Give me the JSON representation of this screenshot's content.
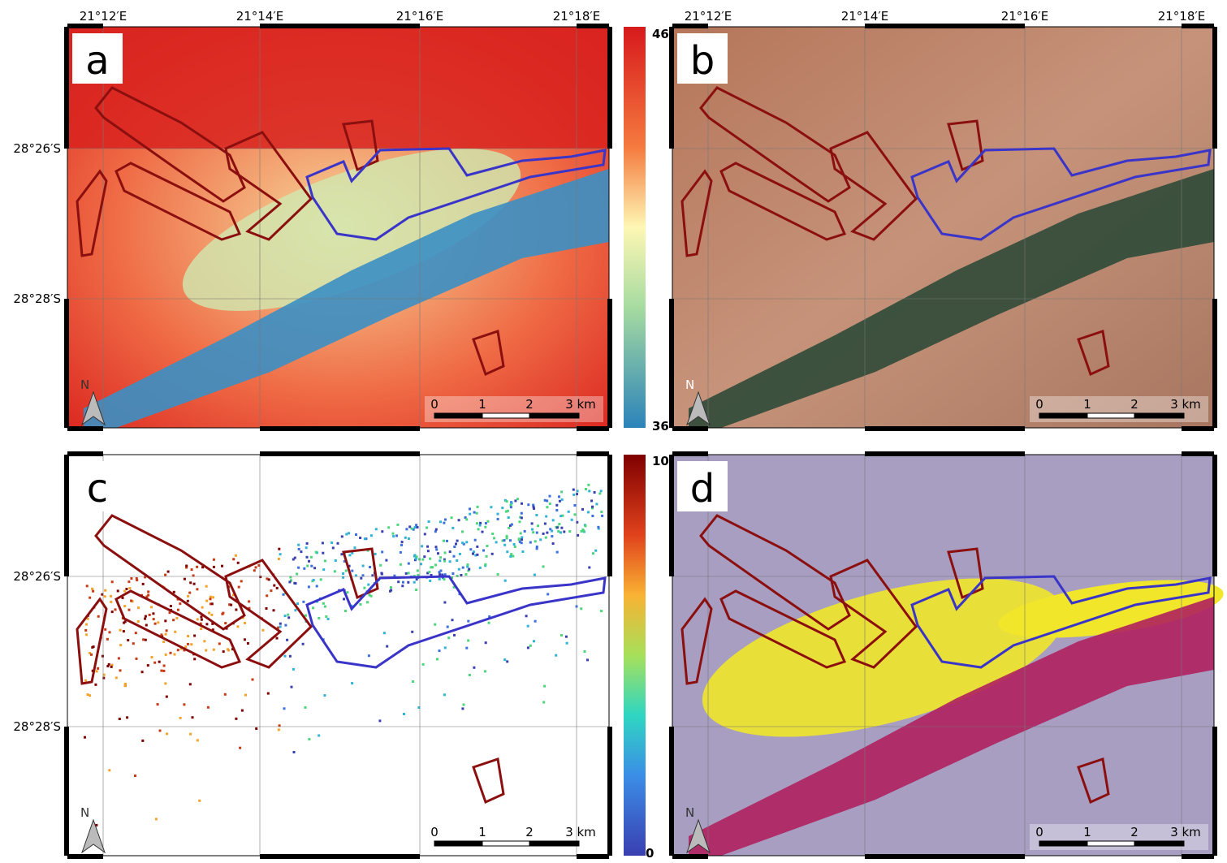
{
  "longitude_labels": [
    "21°12′E",
    "21°14′E",
    "21°16′E",
    "21°18′E"
  ],
  "latitude_labels": [
    "28°26′S",
    "28°28′S"
  ],
  "panels": [
    {
      "label": "a",
      "north": "N",
      "scale_bar": [
        "0",
        "1",
        "2",
        "3 km"
      ]
    },
    {
      "label": "b",
      "north": "N",
      "scale_bar": [
        "0",
        "1",
        "2",
        "3 km"
      ]
    },
    {
      "label": "c",
      "north": "N",
      "scale_bar": [
        "0",
        "1",
        "2",
        "3 km"
      ]
    },
    {
      "label": "d",
      "north": "N",
      "scale_bar": [
        "0",
        "1",
        "2",
        "3 km"
      ]
    }
  ],
  "colorbars": [
    {
      "max": "46",
      "min": "36"
    },
    {
      "max": "10",
      "min": "0"
    }
  ]
}
